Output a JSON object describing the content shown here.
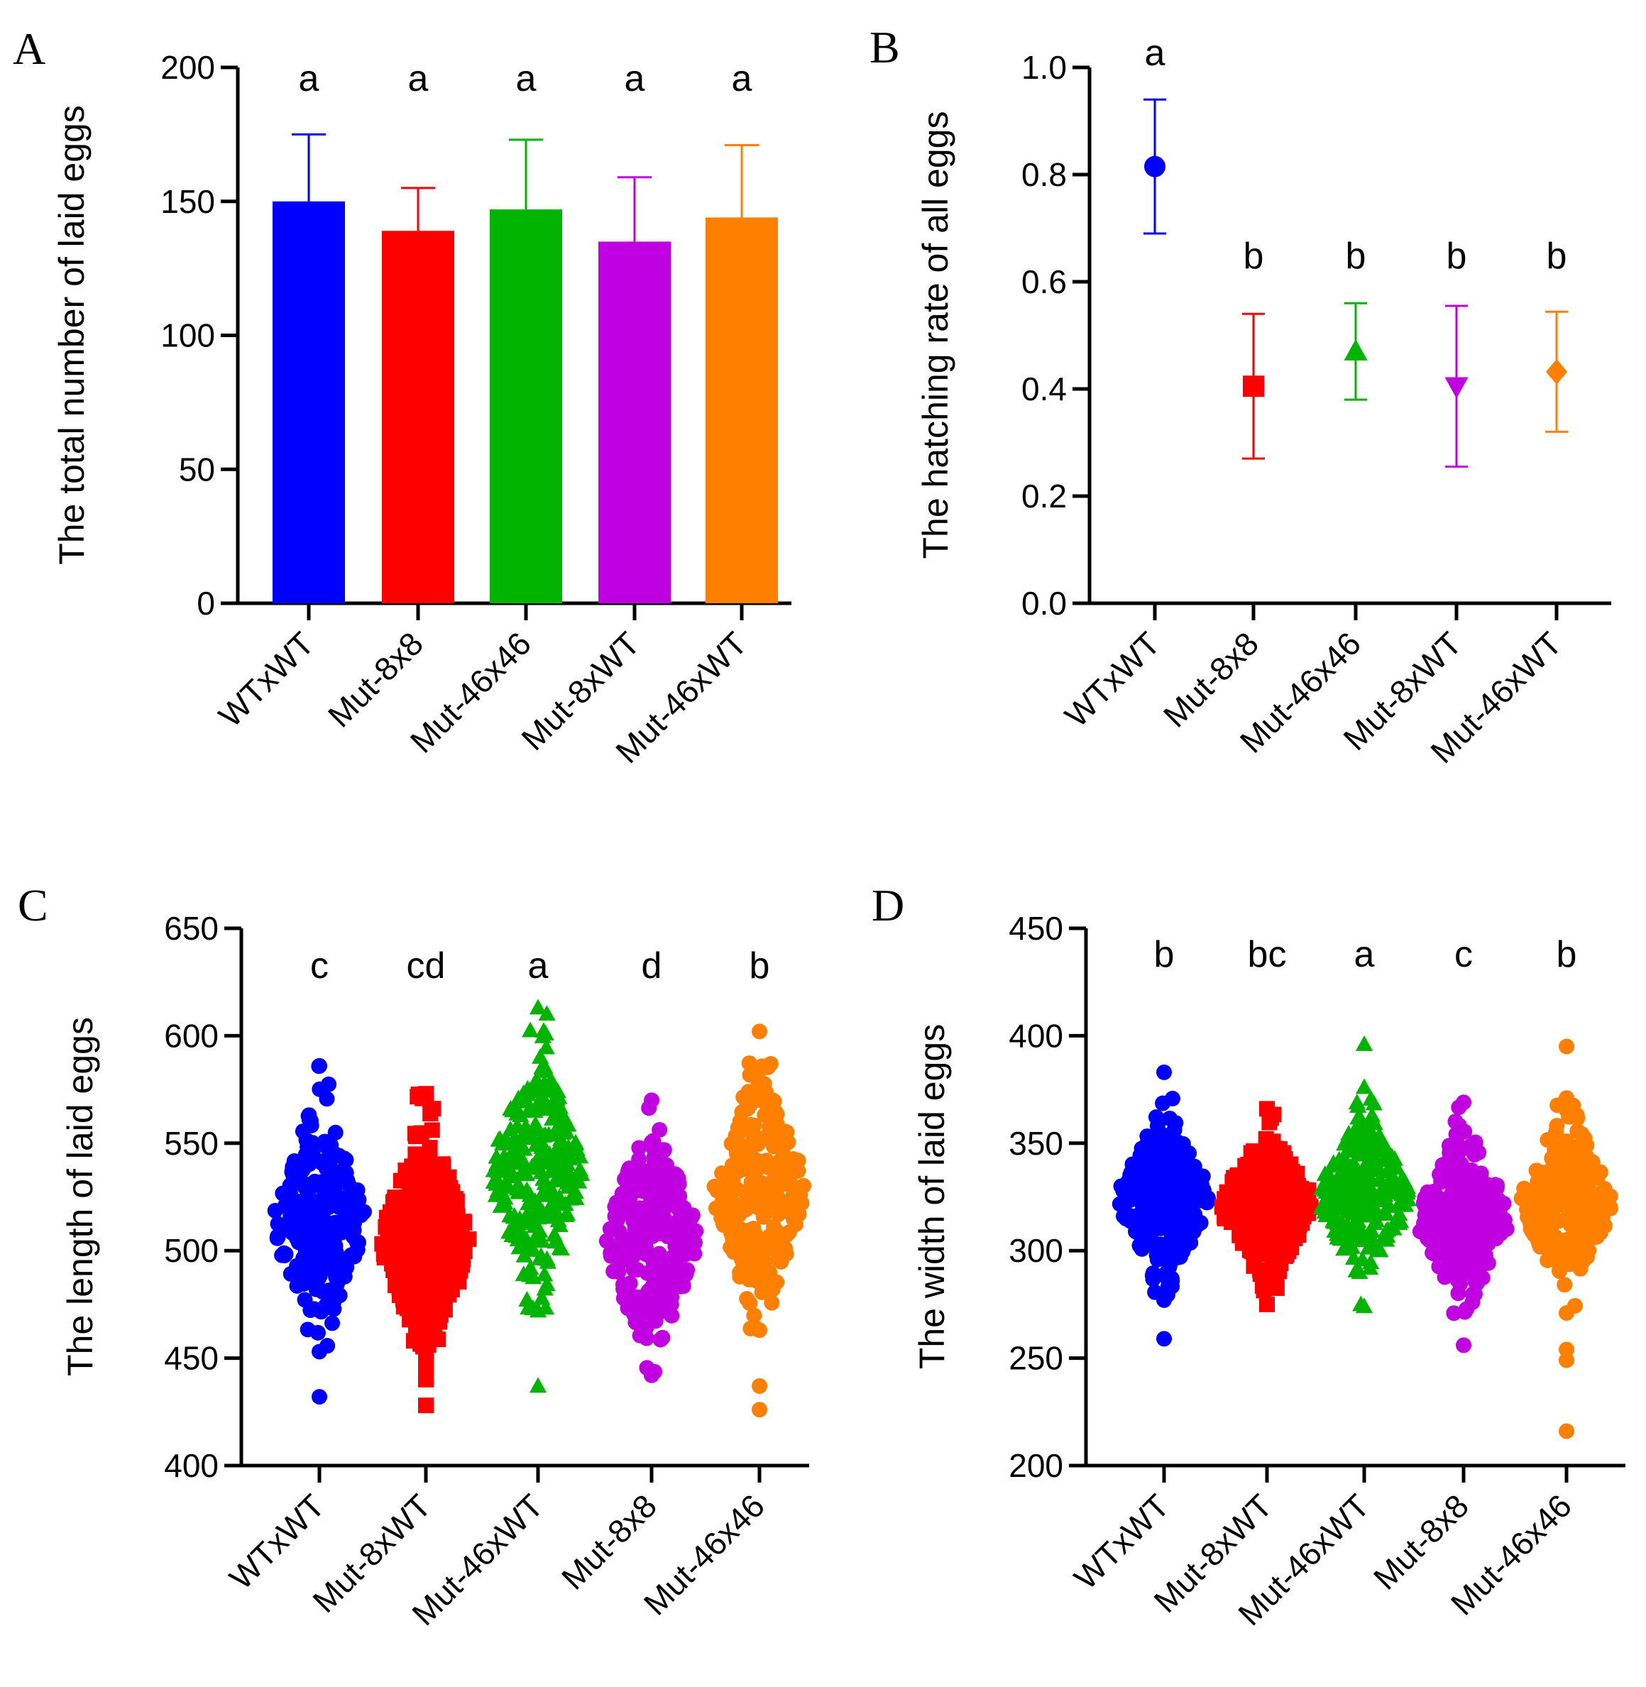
{
  "colors": [
    "#0000ff",
    "#ff0000",
    "#00b400",
    "#c000e0",
    "#ff8000"
  ],
  "chart_data": [
    {
      "panel": "A",
      "type": "bar",
      "ylabel": "The total number of laid eggs",
      "ylim": [
        0,
        200
      ],
      "yticks": [
        "0",
        "50",
        "100",
        "150",
        "200"
      ],
      "categories": [
        "WTxWT",
        "Mut-8x8",
        "Mut-46x46",
        "Mut-8xWT",
        "Mut-46xWT"
      ],
      "values": [
        150,
        139,
        147,
        135,
        144
      ],
      "errors": [
        25,
        16,
        26,
        24,
        27
      ],
      "letters": [
        "a",
        "a",
        "a",
        "a",
        "a"
      ]
    },
    {
      "panel": "B",
      "type": "scatter",
      "ylabel": "The hatching rate of all eggs",
      "ylim": [
        0,
        1
      ],
      "yticks": [
        "0.0",
        "0.2",
        "0.4",
        "0.6",
        "0.8",
        "1.0"
      ],
      "categories": [
        "WTxWT",
        "Mut-8x8",
        "Mut-46x46",
        "Mut-8xWT",
        "Mut-46xWT"
      ],
      "values": [
        0.815,
        0.405,
        0.47,
        0.405,
        0.432
      ],
      "errors": [
        0.125,
        0.135,
        0.09,
        0.15,
        0.112
      ],
      "markers": [
        "circle",
        "square",
        "triangle-up",
        "triangle-down",
        "diamond"
      ],
      "letters": [
        "a",
        "b",
        "b",
        "b",
        "b"
      ]
    },
    {
      "panel": "C",
      "type": "scatter",
      "ylabel": "The length of laid eggs",
      "ylim": [
        400,
        650
      ],
      "yticks": [
        "400",
        "450",
        "500",
        "550",
        "600",
        "650"
      ],
      "categories": [
        "WTxWT",
        "Mut-8xWT",
        "Mut-46xWT",
        "Mut-8x8",
        "Mut-46x46"
      ],
      "markers": [
        "circle",
        "square",
        "triangle-up",
        "circle",
        "circle"
      ],
      "means": [
        514,
        505,
        536,
        505,
        528
      ],
      "sd": [
        24,
        22,
        26,
        24,
        26
      ],
      "ranges": [
        [
          453,
          586
        ],
        [
          455,
          573
        ],
        [
          472,
          613
        ],
        [
          442,
          570
        ],
        [
          463,
          602
        ]
      ],
      "outliers": [
        [
          432
        ],
        [
          440,
          444,
          450,
          428
        ],
        [
          437
        ],
        [],
        [
          437,
          426
        ]
      ],
      "letters": [
        "c",
        "cd",
        "a",
        "d",
        "b"
      ]
    },
    {
      "panel": "D",
      "type": "scatter",
      "ylabel": "The width of laid eggs",
      "ylim": [
        200,
        450
      ],
      "yticks": [
        "200",
        "250",
        "300",
        "350",
        "400",
        "450"
      ],
      "categories": [
        "WTxWT",
        "Mut-8xWT",
        "Mut-46xWT",
        "Mut-8x8",
        "Mut-46x46"
      ],
      "markers": [
        "circle",
        "square",
        "triangle-up",
        "circle",
        "circle"
      ],
      "means": [
        324,
        321,
        326,
        315,
        323
      ],
      "sd": [
        17,
        15,
        17,
        18,
        18
      ],
      "ranges": [
        [
          277,
          383
        ],
        [
          275,
          366
        ],
        [
          274,
          376
        ],
        [
          256,
          369
        ],
        [
          271,
          371
        ]
      ],
      "outliers": [
        [
          259
        ],
        [],
        [
          396
        ],
        [],
        [
          395,
          254,
          249,
          216
        ]
      ],
      "letters": [
        "b",
        "bc",
        "a",
        "c",
        "b"
      ]
    }
  ]
}
